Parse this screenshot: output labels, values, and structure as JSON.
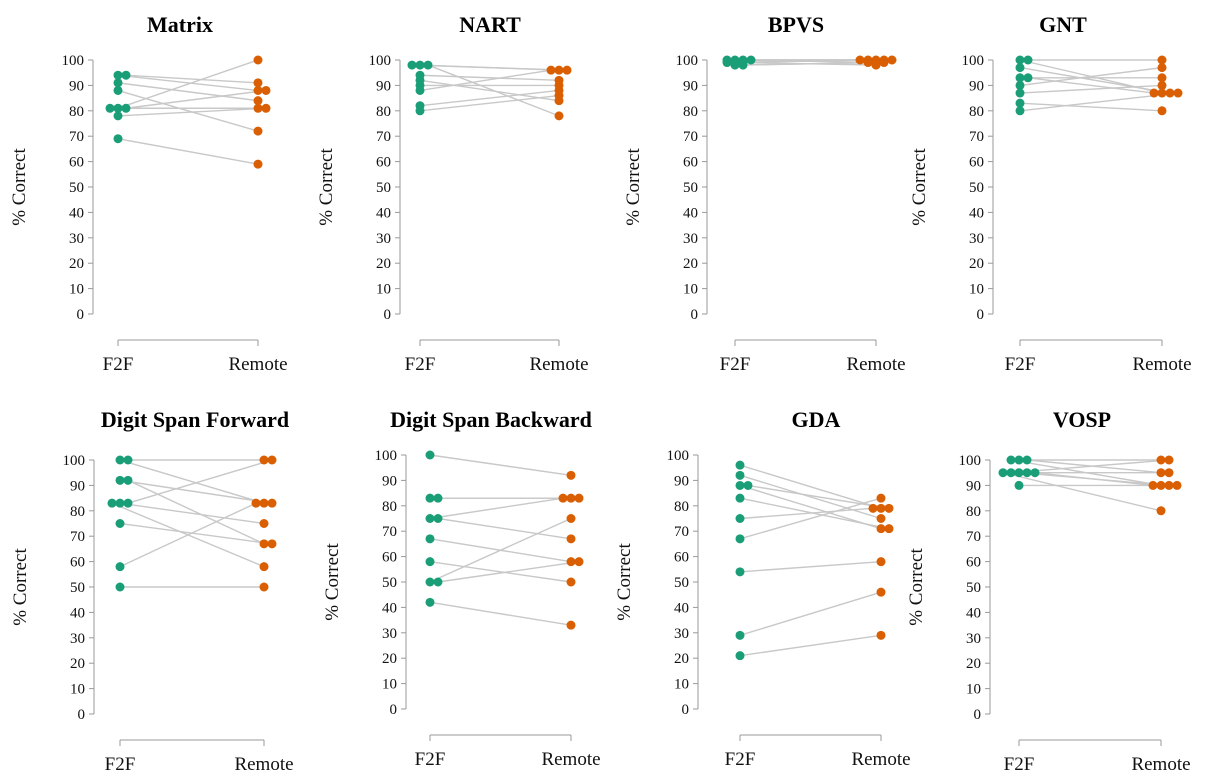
{
  "colors": {
    "f2f": "#1a9e77",
    "remote": "#d95f02",
    "line": "#c8c8c8",
    "axis": "#999999"
  },
  "chart_data": [
    {
      "type": "scatter",
      "title": "Matrix",
      "ylabel": "% Correct",
      "categories": [
        "F2F",
        "Remote"
      ],
      "ylim": [
        0,
        100
      ],
      "yticks": [
        0,
        10,
        20,
        30,
        40,
        50,
        60,
        70,
        80,
        90,
        100
      ],
      "pairs": [
        {
          "f2f": 94,
          "remote": 88
        },
        {
          "f2f": 94,
          "remote": 91
        },
        {
          "f2f": 91,
          "remote": 84
        },
        {
          "f2f": 88,
          "remote": 72
        },
        {
          "f2f": 81,
          "remote": 100
        },
        {
          "f2f": 81,
          "remote": 88
        },
        {
          "f2f": 81,
          "remote": 81
        },
        {
          "f2f": 78,
          "remote": 81
        },
        {
          "f2f": 69,
          "remote": 59
        }
      ]
    },
    {
      "type": "scatter",
      "title": "NART",
      "ylabel": "% Correct",
      "categories": [
        "F2F",
        "Remote"
      ],
      "ylim": [
        0,
        100
      ],
      "yticks": [
        0,
        10,
        20,
        30,
        40,
        50,
        60,
        70,
        80,
        90,
        100
      ],
      "pairs": [
        {
          "f2f": 98,
          "remote": 96
        },
        {
          "f2f": 98,
          "remote": 78
        },
        {
          "f2f": 98,
          "remote": 96
        },
        {
          "f2f": 94,
          "remote": 92
        },
        {
          "f2f": 92,
          "remote": 84
        },
        {
          "f2f": 90,
          "remote": 90
        },
        {
          "f2f": 88,
          "remote": 96
        },
        {
          "f2f": 82,
          "remote": 88
        },
        {
          "f2f": 80,
          "remote": 86
        }
      ]
    },
    {
      "type": "scatter",
      "title": "BPVS",
      "ylabel": "% Correct",
      "categories": [
        "F2F",
        "Remote"
      ],
      "ylim": [
        0,
        100
      ],
      "yticks": [
        0,
        10,
        20,
        30,
        40,
        50,
        60,
        70,
        80,
        90,
        100
      ],
      "pairs": [
        {
          "f2f": 100,
          "remote": 99
        },
        {
          "f2f": 99,
          "remote": 100
        },
        {
          "f2f": 100,
          "remote": 100
        },
        {
          "f2f": 99,
          "remote": 98
        },
        {
          "f2f": 100,
          "remote": 100
        },
        {
          "f2f": 98,
          "remote": 99
        },
        {
          "f2f": 100,
          "remote": 100
        },
        {
          "f2f": 99,
          "remote": 100
        },
        {
          "f2f": 98,
          "remote": 99
        }
      ]
    },
    {
      "type": "scatter",
      "title": "GNT",
      "ylabel": "% Correct",
      "categories": [
        "F2F",
        "Remote"
      ],
      "ylim": [
        0,
        100
      ],
      "yticks": [
        0,
        10,
        20,
        30,
        40,
        50,
        60,
        70,
        80,
        90,
        100
      ],
      "pairs": [
        {
          "f2f": 100,
          "remote": 87
        },
        {
          "f2f": 100,
          "remote": 100
        },
        {
          "f2f": 97,
          "remote": 87
        },
        {
          "f2f": 93,
          "remote": 93
        },
        {
          "f2f": 93,
          "remote": 87
        },
        {
          "f2f": 90,
          "remote": 97
        },
        {
          "f2f": 87,
          "remote": 90
        },
        {
          "f2f": 83,
          "remote": 80
        },
        {
          "f2f": 80,
          "remote": 87
        }
      ]
    },
    {
      "type": "scatter",
      "title": "Digit Span Forward",
      "ylabel": "% Correct",
      "categories": [
        "F2F",
        "Remote"
      ],
      "ylim": [
        0,
        100
      ],
      "yticks": [
        0,
        10,
        20,
        30,
        40,
        50,
        60,
        70,
        80,
        90,
        100
      ],
      "pairs": [
        {
          "f2f": 100,
          "remote": 83
        },
        {
          "f2f": 100,
          "remote": 100
        },
        {
          "f2f": 92,
          "remote": 83
        },
        {
          "f2f": 92,
          "remote": 67
        },
        {
          "f2f": 83,
          "remote": 75
        },
        {
          "f2f": 83,
          "remote": 100
        },
        {
          "f2f": 83,
          "remote": 58
        },
        {
          "f2f": 75,
          "remote": 67
        },
        {
          "f2f": 58,
          "remote": 83
        },
        {
          "f2f": 50,
          "remote": 50
        }
      ]
    },
    {
      "type": "scatter",
      "title": "Digit Span Backward",
      "ylabel": "% Correct",
      "categories": [
        "F2F",
        "Remote"
      ],
      "ylim": [
        0,
        100
      ],
      "yticks": [
        0,
        10,
        20,
        30,
        40,
        50,
        60,
        70,
        80,
        90,
        100
      ],
      "pairs": [
        {
          "f2f": 100,
          "remote": 92
        },
        {
          "f2f": 83,
          "remote": 83
        },
        {
          "f2f": 83,
          "remote": 83
        },
        {
          "f2f": 75,
          "remote": 83
        },
        {
          "f2f": 75,
          "remote": 67
        },
        {
          "f2f": 67,
          "remote": 58
        },
        {
          "f2f": 58,
          "remote": 50
        },
        {
          "f2f": 50,
          "remote": 75
        },
        {
          "f2f": 50,
          "remote": 58
        },
        {
          "f2f": 42,
          "remote": 33
        }
      ]
    },
    {
      "type": "scatter",
      "title": "GDA",
      "ylabel": "% Correct",
      "categories": [
        "F2F",
        "Remote"
      ],
      "ylim": [
        0,
        100
      ],
      "yticks": [
        0,
        10,
        20,
        30,
        40,
        50,
        60,
        70,
        80,
        90,
        100
      ],
      "pairs": [
        {
          "f2f": 96,
          "remote": 79
        },
        {
          "f2f": 92,
          "remote": 75
        },
        {
          "f2f": 88,
          "remote": 71
        },
        {
          "f2f": 88,
          "remote": 79
        },
        {
          "f2f": 83,
          "remote": 71
        },
        {
          "f2f": 75,
          "remote": 79
        },
        {
          "f2f": 67,
          "remote": 83
        },
        {
          "f2f": 54,
          "remote": 58
        },
        {
          "f2f": 29,
          "remote": 46
        },
        {
          "f2f": 21,
          "remote": 29
        }
      ]
    },
    {
      "type": "scatter",
      "title": "VOSP",
      "ylabel": "% Correct",
      "categories": [
        "F2F",
        "Remote"
      ],
      "ylim": [
        0,
        100
      ],
      "yticks": [
        0,
        10,
        20,
        30,
        40,
        50,
        60,
        70,
        80,
        90,
        100
      ],
      "pairs": [
        {
          "f2f": 100,
          "remote": 100
        },
        {
          "f2f": 100,
          "remote": 95
        },
        {
          "f2f": 100,
          "remote": 90
        },
        {
          "f2f": 95,
          "remote": 90
        },
        {
          "f2f": 95,
          "remote": 95
        },
        {
          "f2f": 95,
          "remote": 100
        },
        {
          "f2f": 95,
          "remote": 90
        },
        {
          "f2f": 95,
          "remote": 80
        },
        {
          "f2f": 90,
          "remote": 90
        }
      ]
    }
  ]
}
